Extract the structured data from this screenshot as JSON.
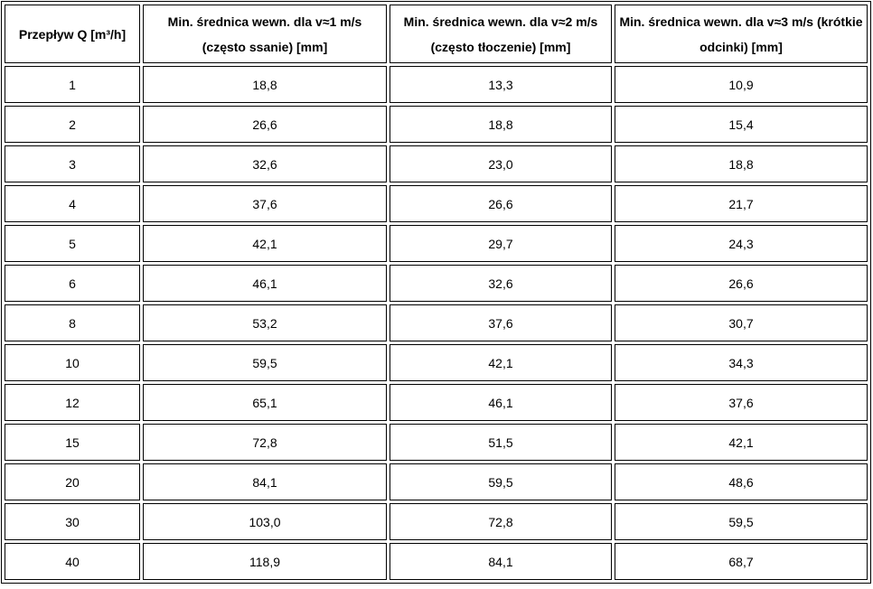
{
  "table": {
    "header": [
      "Przepływ Q [m³/h]",
      "Min. średnica wewn. dla v≈1 m/s (często ssanie) [mm]",
      "Min. średnica wewn. dla v≈2 m/s (często tłoczenie) [mm]",
      "Min. średnica wewn. dla v≈3 m/s (krótkie odcinki) [mm]"
    ],
    "rows": [
      [
        "1",
        "18,8",
        "13,3",
        "10,9"
      ],
      [
        "2",
        "26,6",
        "18,8",
        "15,4"
      ],
      [
        "3",
        "32,6",
        "23,0",
        "18,8"
      ],
      [
        "4",
        "37,6",
        "26,6",
        "21,7"
      ],
      [
        "5",
        "42,1",
        "29,7",
        "24,3"
      ],
      [
        "6",
        "46,1",
        "32,6",
        "26,6"
      ],
      [
        "8",
        "53,2",
        "37,6",
        "30,7"
      ],
      [
        "10",
        "59,5",
        "42,1",
        "34,3"
      ],
      [
        "12",
        "65,1",
        "46,1",
        "37,6"
      ],
      [
        "15",
        "72,8",
        "51,5",
        "42,1"
      ],
      [
        "20",
        "84,1",
        "59,5",
        "48,6"
      ],
      [
        "30",
        "103,0",
        "72,8",
        "59,5"
      ],
      [
        "40",
        "118,9",
        "84,1",
        "68,7"
      ]
    ]
  }
}
